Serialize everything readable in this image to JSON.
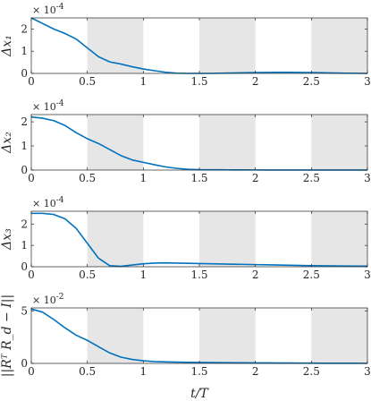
{
  "chart_data": {
    "type": "line",
    "shared_x": {
      "label": "t/T",
      "ticks": [
        0,
        0.5,
        1,
        1.5,
        2,
        2.5,
        3
      ],
      "tick_labels": [
        "0",
        "0.5",
        "1",
        "1.5",
        "2",
        "2.5",
        "3"
      ],
      "lim": [
        0,
        3
      ]
    },
    "shaded_intervals": [
      [
        0.5,
        1.0
      ],
      [
        1.5,
        2.0
      ],
      [
        2.5,
        3.0
      ]
    ],
    "colors": {
      "line": "#0072BD",
      "shade": "#e6e6e6",
      "axis": "#262626"
    },
    "grid": false,
    "subplots": [
      {
        "ylabel": "Δx₁",
        "multiplier": "× 10",
        "exponent": "-4",
        "ylim": [
          0,
          2.5
        ],
        "yticks": [
          0,
          1,
          2
        ],
        "ytick_labels": [
          "0",
          "1",
          "2"
        ],
        "x": [
          0,
          0.1,
          0.2,
          0.3,
          0.4,
          0.5,
          0.6,
          0.7,
          0.8,
          0.9,
          1.0,
          1.1,
          1.2,
          1.3,
          1.4,
          1.5,
          1.6,
          1.7,
          1.8,
          1.9,
          2.0,
          2.1,
          2.2,
          2.3,
          2.4,
          2.5,
          2.6,
          2.7,
          2.8,
          2.9,
          3.0
        ],
        "y": [
          2.5,
          2.25,
          2.0,
          1.8,
          1.55,
          1.15,
          0.75,
          0.52,
          0.42,
          0.3,
          0.2,
          0.12,
          0.05,
          0.01,
          0.0,
          0.0,
          0.0,
          0.01,
          0.02,
          0.03,
          0.04,
          0.045,
          0.05,
          0.05,
          0.045,
          0.04,
          0.03,
          0.02,
          0.01,
          0.005,
          0.0
        ]
      },
      {
        "ylabel": "Δx₂",
        "multiplier": "× 10",
        "exponent": "-4",
        "ylim": [
          0,
          2.3
        ],
        "yticks": [
          0,
          1,
          2
        ],
        "ytick_labels": [
          "0",
          "1",
          "2"
        ],
        "x": [
          0,
          0.1,
          0.2,
          0.3,
          0.4,
          0.5,
          0.6,
          0.7,
          0.8,
          0.9,
          1.0,
          1.1,
          1.2,
          1.3,
          1.4,
          1.5,
          1.6,
          1.7,
          1.8,
          1.9,
          2.0,
          2.1,
          2.2,
          2.3,
          2.4,
          2.5,
          2.6,
          2.7,
          2.8,
          2.9,
          3.0
        ],
        "y": [
          2.2,
          2.15,
          2.05,
          1.85,
          1.55,
          1.3,
          1.1,
          0.85,
          0.6,
          0.42,
          0.32,
          0.22,
          0.13,
          0.07,
          0.03,
          0.015,
          0.01,
          0.01,
          0.008,
          0.006,
          0.005,
          0.004,
          0.003,
          0.003,
          0.002,
          0.002,
          0.002,
          0.001,
          0.001,
          0.001,
          0.001
        ]
      },
      {
        "ylabel": "Δx₃",
        "multiplier": "× 10",
        "exponent": "-4",
        "ylim": [
          0,
          2.6
        ],
        "yticks": [
          0,
          1,
          2
        ],
        "ytick_labels": [
          "0",
          "1",
          "2"
        ],
        "x": [
          0,
          0.1,
          0.2,
          0.3,
          0.4,
          0.5,
          0.6,
          0.7,
          0.8,
          0.9,
          1.0,
          1.1,
          1.2,
          1.3,
          1.4,
          1.5,
          1.6,
          1.7,
          1.8,
          1.9,
          2.0,
          2.1,
          2.2,
          2.3,
          2.4,
          2.5,
          2.6,
          2.7,
          2.8,
          2.9,
          3.0
        ],
        "y": [
          2.5,
          2.5,
          2.45,
          2.25,
          1.8,
          1.1,
          0.4,
          0.05,
          0.02,
          0.08,
          0.14,
          0.17,
          0.18,
          0.17,
          0.16,
          0.15,
          0.14,
          0.13,
          0.12,
          0.11,
          0.1,
          0.09,
          0.08,
          0.07,
          0.06,
          0.05,
          0.045,
          0.04,
          0.035,
          0.03,
          0.03
        ]
      },
      {
        "ylabel": "||Rᵀ R_d − I||",
        "multiplier": "× 10",
        "exponent": "-2",
        "ylim": [
          0,
          5.3
        ],
        "yticks": [
          0,
          5
        ],
        "ytick_labels": [
          "0",
          "5"
        ],
        "x": [
          0,
          0.1,
          0.2,
          0.3,
          0.4,
          0.5,
          0.6,
          0.7,
          0.8,
          0.9,
          1.0,
          1.1,
          1.2,
          1.3,
          1.4,
          1.5,
          1.6,
          1.7,
          1.8,
          1.9,
          2.0,
          2.1,
          2.2,
          2.3,
          2.4,
          2.5,
          2.6,
          2.7,
          2.8,
          2.9,
          3.0
        ],
        "y": [
          5.2,
          4.9,
          4.2,
          3.4,
          2.7,
          2.2,
          1.6,
          1.0,
          0.6,
          0.38,
          0.25,
          0.18,
          0.14,
          0.12,
          0.1,
          0.09,
          0.08,
          0.07,
          0.06,
          0.055,
          0.05,
          0.045,
          0.04,
          0.035,
          0.03,
          0.025,
          0.02,
          0.02,
          0.015,
          0.015,
          0.01
        ]
      }
    ]
  }
}
